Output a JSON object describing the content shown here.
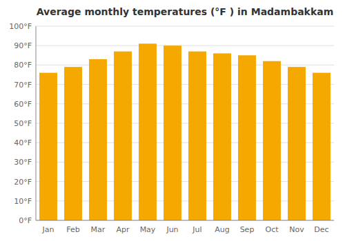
{
  "chart_data": {
    "type": "bar",
    "title": "Average monthly temperatures (°F ) in Madambakkam",
    "categories": [
      "Jan",
      "Feb",
      "Mar",
      "Apr",
      "May",
      "Jun",
      "Jul",
      "Aug",
      "Sep",
      "Oct",
      "Nov",
      "Dec"
    ],
    "values": [
      76,
      79,
      83,
      87,
      91,
      90,
      87,
      86,
      85,
      82,
      79,
      76
    ],
    "color": "#F5A800",
    "ylim": [
      0,
      100
    ],
    "yticks": [
      {
        "value": 0,
        "label": "0°F"
      },
      {
        "value": 10,
        "label": "10°F"
      },
      {
        "value": 20,
        "label": "20°F"
      },
      {
        "value": 30,
        "label": "30°F"
      },
      {
        "value": 40,
        "label": "40°F"
      },
      {
        "value": 50,
        "label": "50°F"
      },
      {
        "value": 60,
        "label": "60°F"
      },
      {
        "value": 70,
        "label": "70°F"
      },
      {
        "value": 80,
        "label": "80°F"
      },
      {
        "value": 90,
        "label": "90°F"
      },
      {
        "value": 100,
        "label": "100°F"
      }
    ],
    "grid": true
  }
}
